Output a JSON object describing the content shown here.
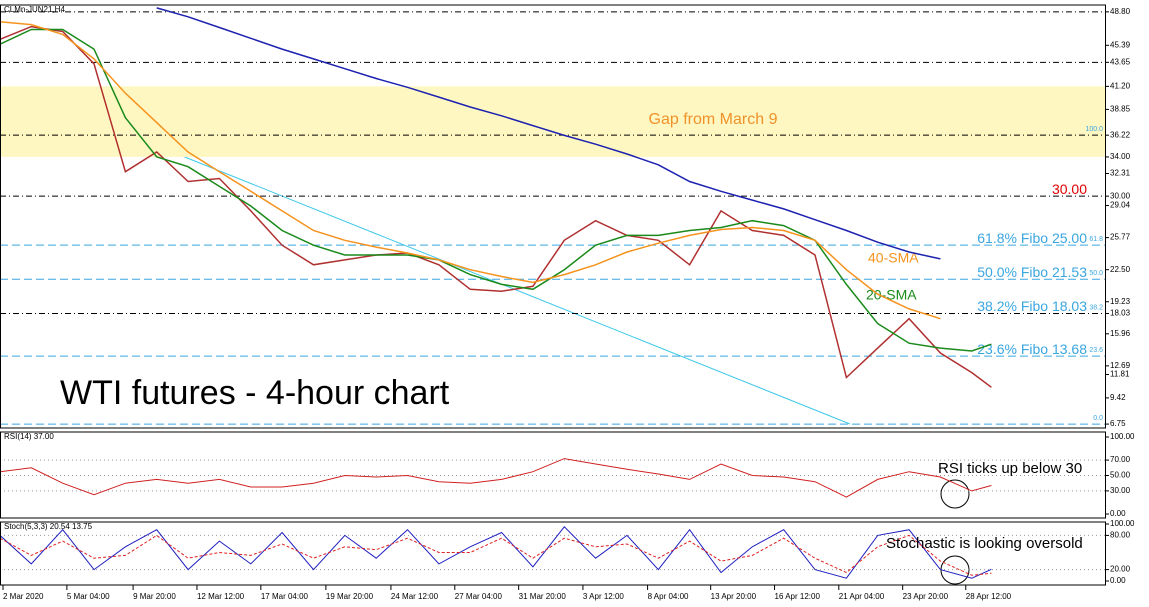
{
  "chart_data": [
    {
      "type": "line",
      "title": "WTI futures - 4-hour chart",
      "header": "CLMn-JUN21,H4",
      "x": [
        0,
        8,
        16,
        24,
        32,
        40,
        48,
        56,
        64,
        72,
        80,
        88,
        96,
        104,
        112,
        120,
        128,
        136,
        144,
        152,
        160,
        168,
        176,
        184,
        192,
        200,
        208,
        216,
        224,
        232,
        240,
        248,
        253
      ],
      "xlim": [
        0,
        282
      ],
      "xticks": [
        {
          "value": 0,
          "label": "2 Mar 2020"
        },
        {
          "value": 16.3,
          "label": "5 Mar 04:00"
        },
        {
          "value": 33.2,
          "label": "9 Mar 20:00"
        },
        {
          "value": 49.5,
          "label": "12 Mar 12:00"
        },
        {
          "value": 65.8,
          "label": "17 Mar 04:00"
        },
        {
          "value": 82.4,
          "label": "19 Mar 20:00"
        },
        {
          "value": 99,
          "label": "24 Mar 12:00"
        },
        {
          "value": 115.3,
          "label": "27 Mar 04:00"
        },
        {
          "value": 131.6,
          "label": "31 Mar 20:00"
        },
        {
          "value": 148,
          "label": "3 Apr 12:00"
        },
        {
          "value": 164.5,
          "label": "8 Apr 04:00"
        },
        {
          "value": 180.6,
          "label": "13 Apr 20:00"
        },
        {
          "value": 196.9,
          "label": "16 Apr 12:00"
        },
        {
          "value": 213.3,
          "label": "21 Apr 04:00"
        },
        {
          "value": 229.6,
          "label": "23 Apr 20:00"
        },
        {
          "value": 245.7,
          "label": "28 Apr 12:00"
        }
      ],
      "ylim": [
        6.35,
        49.5
      ],
      "yticks": [
        {
          "value": 48.8,
          "label": "48.80"
        },
        {
          "value": 45.39,
          "label": "45.39"
        },
        {
          "value": 43.65,
          "label": "43.65"
        },
        {
          "value": 41.2,
          "label": "41.20"
        },
        {
          "value": 38.85,
          "label": "38.85"
        },
        {
          "value": 36.22,
          "label": "36.22"
        },
        {
          "value": 34,
          "label": "34.00"
        },
        {
          "value": 32.31,
          "label": "32.31"
        },
        {
          "value": 30,
          "label": "30.00"
        },
        {
          "value": 29.04,
          "label": "29.04"
        },
        {
          "value": 25.77,
          "label": "25.77"
        },
        {
          "value": 22.5,
          "label": "22.50"
        },
        {
          "value": 19.23,
          "label": "19.23"
        },
        {
          "value": 18.03,
          "label": "18.03"
        },
        {
          "value": 15.96,
          "label": "15.96"
        },
        {
          "value": 12.69,
          "label": "12.69"
        },
        {
          "value": 11.81,
          "label": "11.81"
        },
        {
          "value": 9.42,
          "label": "9.42"
        },
        {
          "value": 6.75,
          "label": "6.75"
        }
      ],
      "band": {
        "from": 34,
        "to": 41.2,
        "label": "Gap from March 9",
        "color": "#fff7c2"
      },
      "levels": [
        {
          "value": 48.8,
          "style": "dashdot"
        },
        {
          "value": 43.65,
          "style": "dashdot"
        },
        {
          "value": 36.22,
          "style": "dashdot",
          "ratio": "100.0"
        },
        {
          "value": 30,
          "style": "dashdot",
          "label": "30.00",
          "color": "#e00000"
        },
        {
          "value": 25,
          "style": "fibo",
          "label": "61.8% Fibo 25.00",
          "ratio": "61.8",
          "color": "#3aa6e0"
        },
        {
          "value": 21.53,
          "style": "fibo",
          "label": "50.0% Fibo 21.53",
          "ratio": "50.0",
          "color": "#3aa6e0"
        },
        {
          "value": 18.03,
          "style": "dashdot",
          "label": "38.2% Fibo 18.03",
          "ratio": "38.2",
          "color": "#3aa6e0"
        },
        {
          "value": 13.68,
          "style": "fibo",
          "label": "23.6% Fibo 13.68",
          "ratio": "23.6",
          "color": "#3aa6e0"
        },
        {
          "value": 6.75,
          "style": "fibo",
          "ratio": "0.0"
        }
      ],
      "series": [
        {
          "color": "#b03030",
          "values": [
            46.0,
            47.3,
            46.8,
            43.5,
            32.5,
            34.5,
            31.5,
            31.8,
            28.5,
            25.0,
            23.0,
            23.5,
            24.0,
            24.2,
            23.0,
            20.5,
            20.3,
            20.8,
            25.5,
            27.5,
            26.0,
            25.5,
            23.0,
            28.5,
            26.5,
            26.0,
            24.0,
            11.5,
            14.5,
            17.5,
            14.0,
            12.0,
            10.5
          ]
        },
        {
          "name": "20-SMA",
          "color": "#1a8a1a",
          "values": [
            45.5,
            47,
            47,
            45,
            38,
            34,
            33,
            31,
            29,
            26.5,
            25,
            24,
            24,
            24,
            23.5,
            22,
            21,
            20.5,
            22.5,
            25,
            26,
            26,
            26.5,
            26.8,
            27.5,
            27,
            25.5,
            21,
            17,
            15,
            14.5,
            14.2,
            14.9
          ]
        },
        {
          "name": "40-SMA",
          "color": "#f5931e",
          "values": [
            47.8,
            47.5,
            46.5,
            44,
            40.5,
            37.5,
            34.5,
            32.5,
            30.5,
            28.5,
            26.5,
            25.5,
            24.8,
            24.2,
            23.5,
            22.5,
            21.8,
            21.2,
            22,
            23,
            24.3,
            25.2,
            26,
            26.6,
            26.8,
            26.5,
            25.5,
            22.5,
            20,
            18.5,
            17.5,
            null,
            null
          ]
        },
        {
          "color": "#1c22b0",
          "values": [
            null,
            null,
            null,
            null,
            null,
            49.2,
            48.3,
            47.2,
            46.1,
            45.0,
            44.0,
            43.0,
            42.0,
            41.1,
            40.1,
            39.1,
            38.2,
            37.2,
            36.2,
            35.3,
            34.3,
            33.2,
            31.5,
            30.5,
            29.6,
            28.7,
            27.6,
            26.5,
            25.3,
            24.3,
            23.6,
            null,
            null
          ]
        }
      ]
    },
    {
      "type": "line",
      "header": "RSI(14) 37.00",
      "annotation": "RSI ticks up below 30",
      "ylim": [
        -5.2,
        106.5
      ],
      "yticks": [
        {
          "value": 100,
          "label": "100.00"
        },
        {
          "value": 70,
          "label": "70.00"
        },
        {
          "value": 50,
          "label": "50.00"
        },
        {
          "value": 30,
          "label": "30.00"
        },
        {
          "value": 0,
          "label": "0.00"
        }
      ],
      "grid": true,
      "series": [
        {
          "color": "#d02020",
          "values": [
            55,
            60,
            40,
            25,
            40,
            45,
            40,
            45,
            35,
            35,
            40,
            50,
            48,
            50,
            42,
            40,
            45,
            55,
            72,
            65,
            58,
            52,
            45,
            65,
            50,
            48,
            42,
            22,
            45,
            55,
            48,
            30,
            37
          ]
        }
      ]
    },
    {
      "type": "line",
      "header": "Stoch(5,3,3) 20.54 13.75",
      "annotation": "Stochastic is looking oversold",
      "ylim": [
        -7,
        103.5
      ],
      "yticks": [
        {
          "value": 100,
          "label": "100.00"
        },
        {
          "value": 80,
          "label": "80.00"
        },
        {
          "value": 20,
          "label": "20.00"
        },
        {
          "value": 0,
          "label": "0.00"
        }
      ],
      "grid": true,
      "series": [
        {
          "color": "#2020c0",
          "values": [
            80,
            30,
            90,
            20,
            60,
            90,
            20,
            70,
            30,
            85,
            20,
            80,
            40,
            90,
            30,
            60,
            85,
            25,
            95,
            40,
            80,
            20,
            90,
            15,
            60,
            90,
            20,
            5,
            80,
            90,
            20,
            5,
            20.54
          ]
        },
        {
          "color": "#e02020",
          "dashed": true,
          "values": [
            75,
            45,
            70,
            40,
            45,
            80,
            40,
            50,
            45,
            65,
            40,
            60,
            55,
            75,
            50,
            50,
            75,
            40,
            75,
            60,
            65,
            40,
            70,
            35,
            45,
            75,
            40,
            15,
            60,
            80,
            35,
            10,
            13.75
          ]
        }
      ]
    }
  ]
}
